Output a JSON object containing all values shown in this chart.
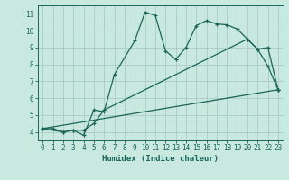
{
  "title": "",
  "xlabel": "Humidex (Indice chaleur)",
  "bg_color": "#c8e8e0",
  "grid_color": "#a8ccc4",
  "line_color": "#1a6658",
  "marker": "+",
  "xlim": [
    -0.5,
    23.5
  ],
  "ylim": [
    3.5,
    11.5
  ],
  "xticks": [
    0,
    1,
    2,
    3,
    4,
    5,
    6,
    7,
    8,
    9,
    10,
    11,
    12,
    13,
    14,
    15,
    16,
    17,
    18,
    19,
    20,
    21,
    22,
    23
  ],
  "yticks": [
    4,
    5,
    6,
    7,
    8,
    9,
    10,
    11
  ],
  "line1_x": [
    0,
    1,
    2,
    3,
    4,
    5,
    6,
    7,
    9,
    10,
    11,
    12,
    13,
    14,
    15,
    16,
    17,
    18,
    19,
    20,
    21,
    22,
    23
  ],
  "line1_y": [
    4.2,
    4.2,
    4.0,
    4.1,
    3.8,
    5.3,
    5.2,
    7.4,
    9.4,
    11.1,
    10.9,
    8.8,
    8.3,
    9.0,
    10.3,
    10.6,
    10.4,
    10.35,
    10.1,
    9.5,
    8.9,
    7.9,
    6.5
  ],
  "line2_x": [
    0,
    2,
    3,
    4,
    5,
    6,
    20,
    21,
    22,
    23
  ],
  "line2_y": [
    4.2,
    4.0,
    4.1,
    4.1,
    4.5,
    5.3,
    9.5,
    8.9,
    9.0,
    6.5
  ],
  "line3_x": [
    0,
    23
  ],
  "line3_y": [
    4.2,
    6.5
  ]
}
